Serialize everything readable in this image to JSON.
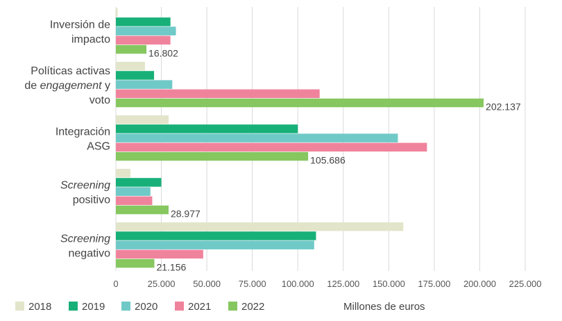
{
  "chart_data": {
    "type": "bar",
    "orientation": "horizontal",
    "title": "",
    "xlabel": "Millones de euros",
    "ylabel": "",
    "xlim": [
      0,
      225000
    ],
    "x_ticks": [
      "0",
      "25.000",
      "50.000",
      "75.000",
      "100.000",
      "125.000",
      "150.000",
      "175.000",
      "200.000",
      "225.000"
    ],
    "x_tick_values": [
      0,
      25000,
      50000,
      75000,
      100000,
      125000,
      150000,
      175000,
      200000,
      225000
    ],
    "grid": true,
    "legend_position": "bottom-left",
    "categories": [
      [
        "Inversión de",
        "impacto"
      ],
      [
        "Políticas activas",
        "de *engagement* y",
        "voto"
      ],
      [
        "Integración",
        "ASG"
      ],
      [
        "*Screening*",
        "positivo"
      ],
      [
        "*Screening*",
        "negativo"
      ]
    ],
    "series": [
      {
        "name": "2018",
        "color": "#e3e5cb",
        "values": [
          1000,
          16000,
          29000,
          8000,
          158000
        ]
      },
      {
        "name": "2019",
        "color": "#17b078",
        "values": [
          30000,
          21000,
          100000,
          25000,
          110000
        ]
      },
      {
        "name": "2020",
        "color": "#6fc9c7",
        "values": [
          33000,
          31000,
          155000,
          19000,
          109000
        ]
      },
      {
        "name": "2021",
        "color": "#f0839c",
        "values": [
          30000,
          112000,
          171000,
          20000,
          48000
        ]
      },
      {
        "name": "2022",
        "color": "#86c760",
        "values": [
          16802,
          202137,
          105686,
          28977,
          21156
        ]
      }
    ],
    "data_labels": [
      "16.802",
      "202.137",
      "105.686",
      "28.977",
      "21.156"
    ]
  }
}
